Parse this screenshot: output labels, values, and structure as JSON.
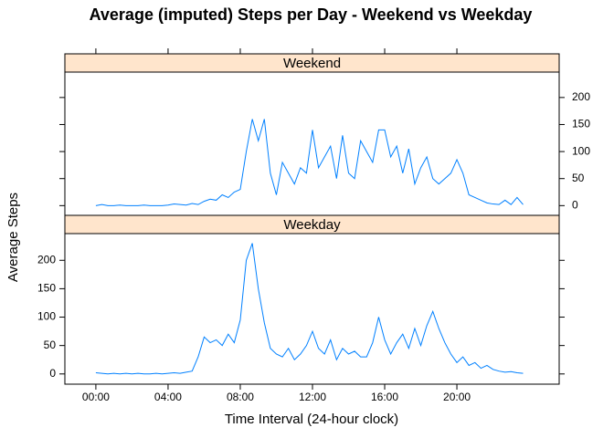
{
  "chart_data": {
    "type": "line",
    "title": "Average (imputed) Steps per Day - Weekend vs Weekday",
    "xlabel": "Time Interval (24-hour clock)",
    "ylabel": "Average Steps",
    "x": [
      0,
      20,
      40,
      60,
      80,
      100,
      120,
      140,
      160,
      180,
      200,
      220,
      240,
      260,
      280,
      300,
      320,
      340,
      360,
      380,
      400,
      420,
      440,
      460,
      480,
      500,
      520,
      540,
      560,
      580,
      600,
      620,
      640,
      660,
      680,
      700,
      720,
      740,
      760,
      780,
      800,
      820,
      840,
      860,
      880,
      900,
      920,
      940,
      960,
      980,
      1000,
      1020,
      1040,
      1060,
      1080,
      1100,
      1120,
      1140,
      1160,
      1180,
      1200,
      1220,
      1240,
      1260,
      1280,
      1300,
      1320,
      1340,
      1360,
      1380,
      1400,
      1420
    ],
    "series": [
      {
        "name": "Weekend",
        "color": "#0080ff",
        "values": [
          0,
          2,
          0,
          0,
          1,
          0,
          0,
          0,
          1,
          0,
          0,
          0,
          1,
          3,
          2,
          1,
          4,
          2,
          8,
          12,
          10,
          20,
          15,
          25,
          30,
          100,
          160,
          120,
          160,
          60,
          20,
          80,
          60,
          40,
          70,
          60,
          140,
          70,
          90,
          110,
          50,
          130,
          60,
          50,
          120,
          100,
          80,
          140,
          140,
          90,
          110,
          60,
          105,
          40,
          70,
          90,
          50,
          40,
          50,
          60,
          85,
          60,
          20,
          15,
          10,
          5,
          3,
          2,
          10,
          2,
          15,
          2
        ]
      },
      {
        "name": "Weekday",
        "color": "#0080ff",
        "values": [
          2,
          1,
          0,
          1,
          0,
          1,
          0,
          1,
          0,
          0,
          1,
          0,
          1,
          2,
          1,
          3,
          5,
          30,
          65,
          55,
          60,
          50,
          70,
          55,
          95,
          200,
          230,
          150,
          90,
          45,
          35,
          30,
          45,
          25,
          35,
          50,
          75,
          45,
          35,
          60,
          25,
          45,
          35,
          40,
          30,
          30,
          55,
          100,
          60,
          35,
          55,
          70,
          45,
          80,
          50,
          85,
          110,
          80,
          55,
          35,
          20,
          30,
          15,
          20,
          10,
          15,
          8,
          5,
          3,
          4,
          2,
          1
        ]
      }
    ],
    "xlim": [
      -103,
      1540
    ],
    "xticks": [
      {
        "value": 0,
        "label": "00:00"
      },
      {
        "value": 240,
        "label": "04:00"
      },
      {
        "value": 480,
        "label": "08:00"
      },
      {
        "value": 720,
        "label": "12:00"
      },
      {
        "value": 960,
        "label": "16:00"
      },
      {
        "value": 1200,
        "label": "20:00"
      }
    ],
    "ylim": [
      -18,
      247
    ],
    "yticks": [
      0,
      50,
      100,
      150,
      200
    ],
    "strip_color": "#ffe5cc"
  }
}
